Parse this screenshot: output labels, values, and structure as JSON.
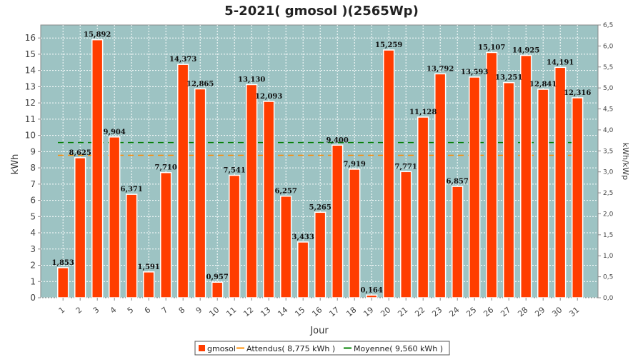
{
  "chart_data": {
    "type": "bar",
    "title": "5-2021( gmosol )(2565Wp)",
    "xlabel": "Jour",
    "ylabel": "kWh",
    "ylabel_right": "kWh/kWp",
    "categories": [
      "1",
      "2",
      "3",
      "4",
      "5",
      "6",
      "7",
      "8",
      "9",
      "10",
      "11",
      "12",
      "13",
      "14",
      "15",
      "16",
      "17",
      "18",
      "19",
      "20",
      "21",
      "22",
      "23",
      "24",
      "25",
      "26",
      "27",
      "28",
      "29",
      "30",
      "31"
    ],
    "series": [
      {
        "name": "gmosol",
        "color": "#ff3d00",
        "values": [
          1.853,
          8.625,
          15.892,
          9.904,
          6.371,
          1.591,
          7.71,
          14.373,
          12.865,
          0.957,
          7.541,
          13.13,
          12.093,
          6.257,
          3.433,
          5.265,
          9.4,
          7.919,
          0.164,
          15.259,
          7.771,
          11.128,
          13.792,
          6.857,
          13.593,
          15.107,
          13.251,
          14.925,
          12.841,
          14.191,
          12.316
        ],
        "labels": [
          "1,853",
          "8,625",
          "15,892",
          "9,904",
          "6,371",
          "1,591",
          "7,710",
          "14,373",
          "12,865",
          "0,957",
          "7,541",
          "13,130",
          "12,093",
          "6,257",
          "3,433",
          "5,265",
          "9,400",
          "7,919",
          "0,164",
          "15,259",
          "7,771",
          "11,128",
          "13,792",
          "6,857",
          "13,593",
          "15,107",
          "13,251",
          "14,925",
          "12,841",
          "14,191",
          "12,316"
        ]
      }
    ],
    "reference_lines": [
      {
        "name": "Attendus",
        "value": 8.775,
        "color": "#ff8c00",
        "style": "dashed"
      },
      {
        "name": "Moyenne",
        "value": 9.56,
        "color": "#008000",
        "style": "dashed"
      }
    ],
    "ylim": [
      0,
      16.8
    ],
    "ylim_right": [
      0,
      6.5
    ],
    "yticks": [
      "0",
      "1",
      "2",
      "3",
      "4",
      "5",
      "6",
      "7",
      "8",
      "9",
      "10",
      "11",
      "12",
      "13",
      "14",
      "15",
      "16"
    ],
    "yticks_right": [
      "0,0",
      "0,5",
      "1,0",
      "1,5",
      "2,0",
      "2,5",
      "3,0",
      "3,5",
      "4,0",
      "4,5",
      "5,0",
      "5,5",
      "6,0",
      "6,5"
    ],
    "legend": {
      "position": "bottom",
      "items": [
        "gmosol",
        "Attendus( 8,775 kWh )",
        "Moyenne( 9,560 kWh )"
      ]
    },
    "grid": true,
    "plot_background": "#9dc3c3"
  }
}
